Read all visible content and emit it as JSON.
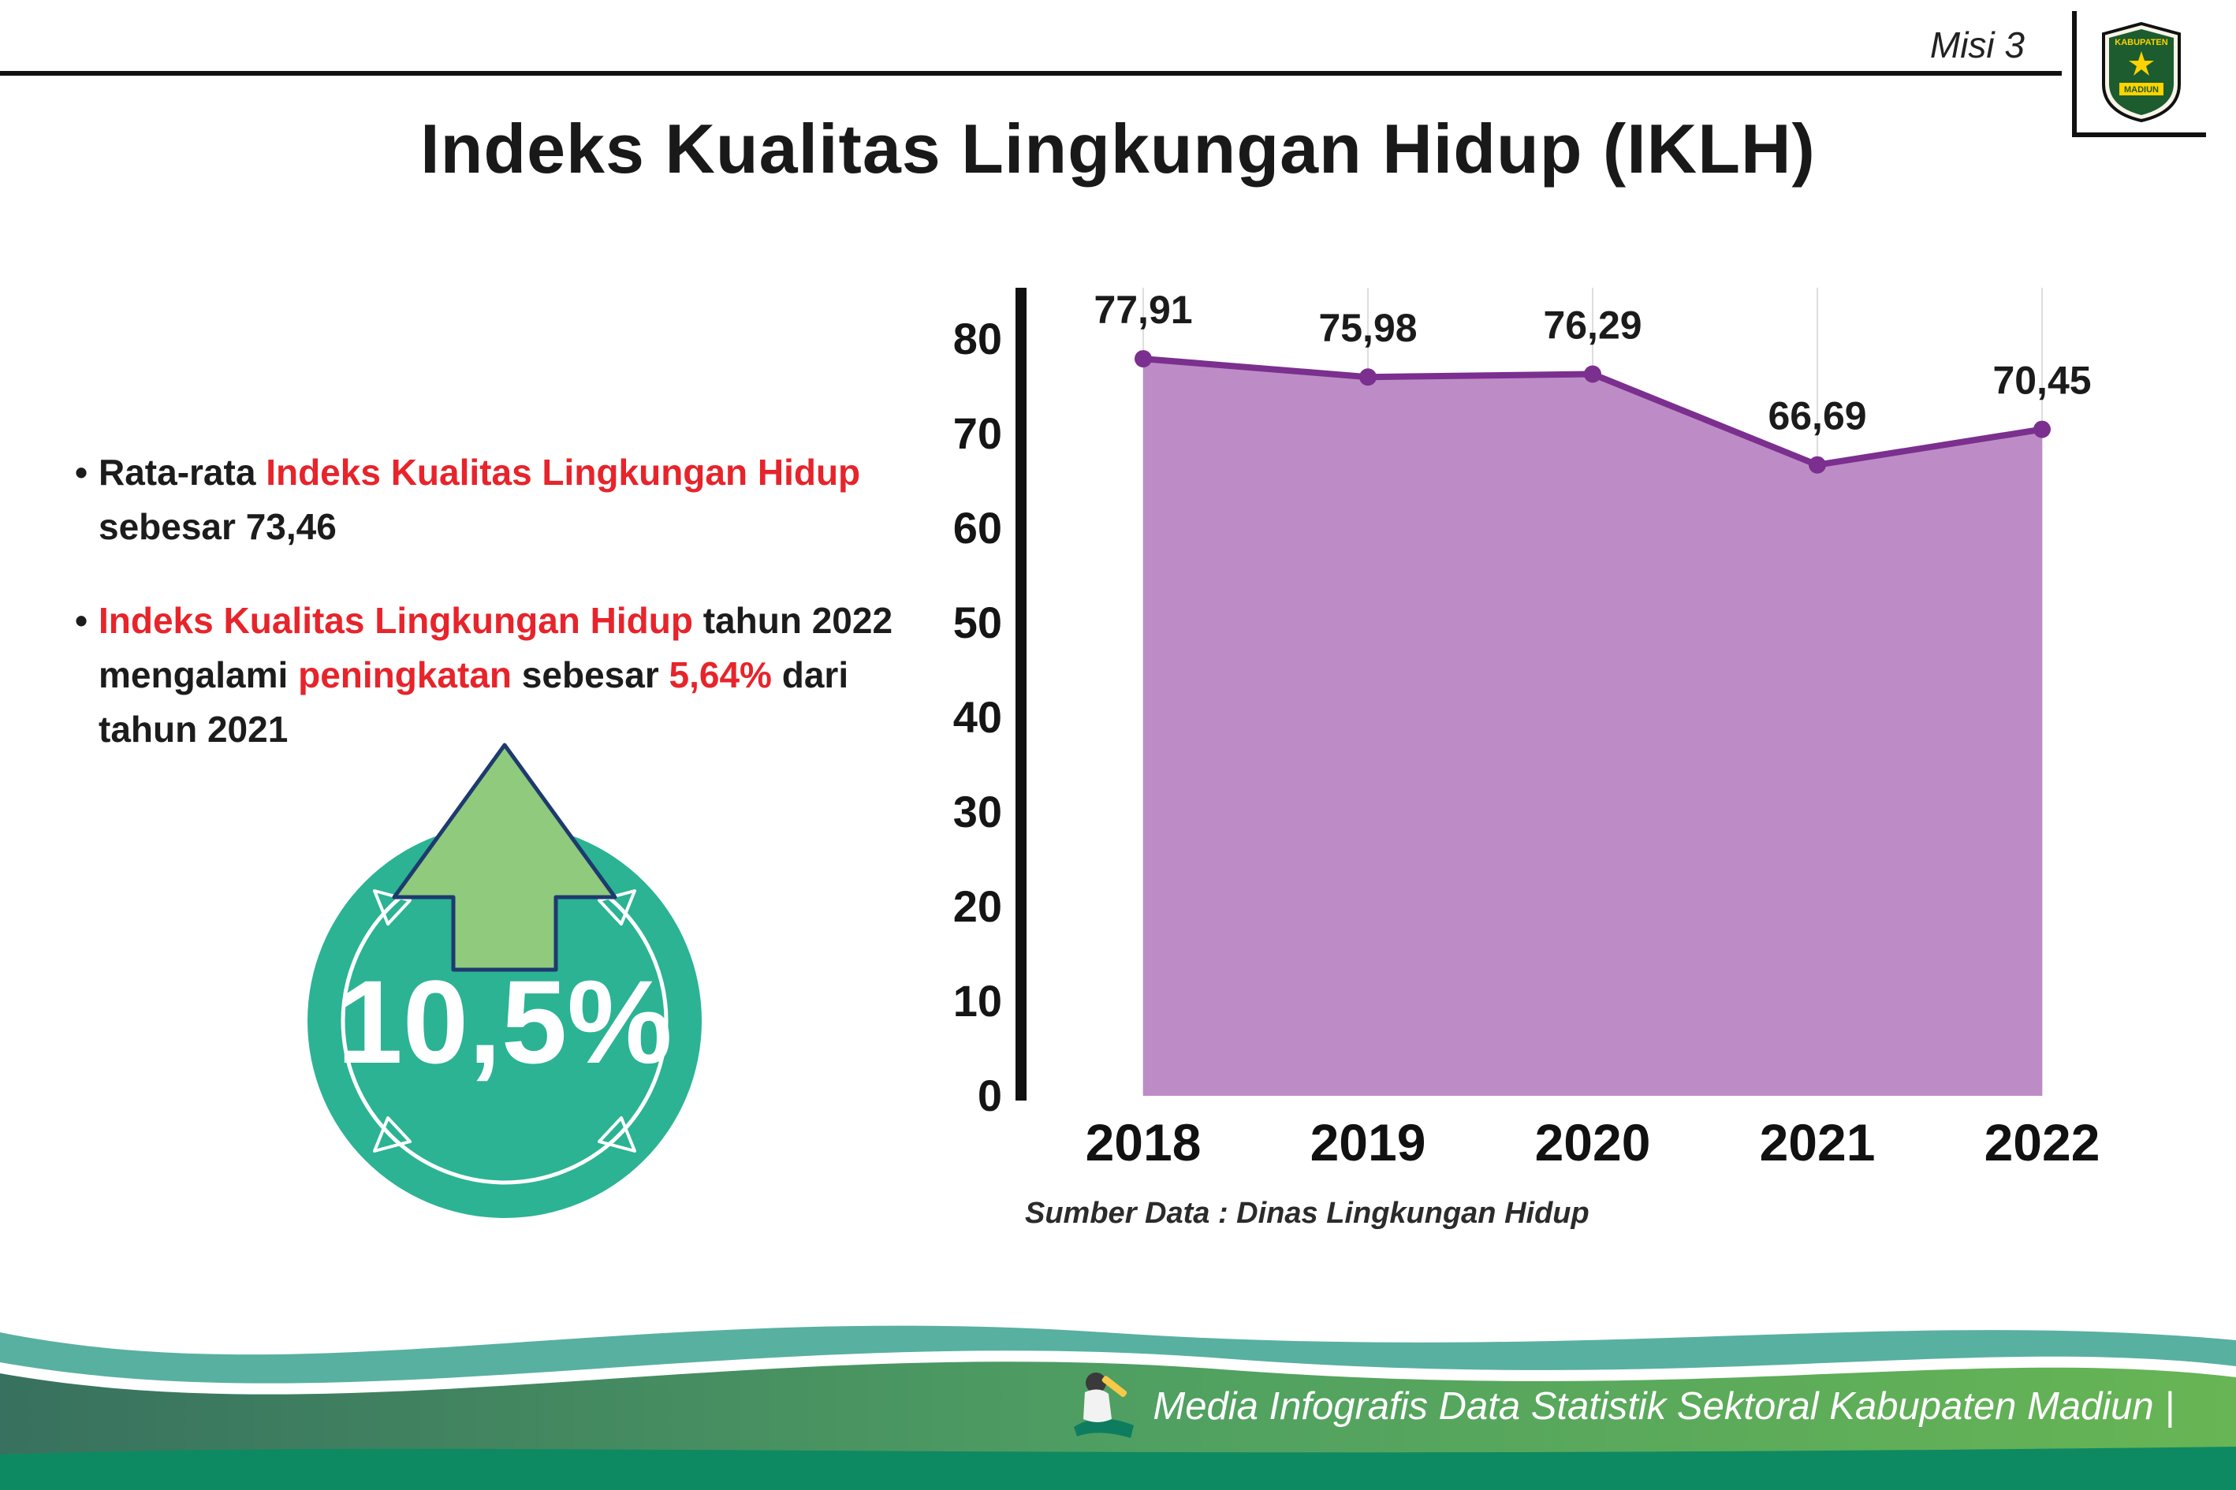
{
  "header": {
    "misi_label": "Misi 3",
    "title": "Indeks Kualitas Lingkungan Hidup (IKLH)"
  },
  "logo": {
    "top_text": "KABUPATEN",
    "bottom_text": "MADIUN"
  },
  "bullets": [
    {
      "segments": [
        {
          "text": "Rata-rata ",
          "emphasis": false
        },
        {
          "text": "Indeks Kualitas Lingkungan Hidup",
          "emphasis": true
        },
        {
          "text": " sebesar 73,46",
          "emphasis": false
        }
      ]
    },
    {
      "segments": [
        {
          "text": "Indeks Kualitas Lingkungan Hidup",
          "emphasis": true
        },
        {
          "text": " tahun 2022 mengalami ",
          "emphasis": false
        },
        {
          "text": "peningkatan",
          "emphasis": true
        },
        {
          "text": " sebesar ",
          "emphasis": false
        },
        {
          "text": "5,64%",
          "emphasis": true
        },
        {
          "text": " dari tahun 2021",
          "emphasis": false
        }
      ]
    }
  ],
  "badge": {
    "value": "10,5%"
  },
  "chart_data": {
    "type": "area",
    "title": "",
    "categories": [
      "2018",
      "2019",
      "2020",
      "2021",
      "2022"
    ],
    "values": [
      77.91,
      75.98,
      76.29,
      66.69,
      70.45
    ],
    "labels": [
      "77,91",
      "75,98",
      "76,29",
      "66,69",
      "70,45"
    ],
    "ylim": [
      0,
      80
    ],
    "yticks": [
      0,
      10,
      20,
      30,
      40,
      50,
      60,
      70,
      80
    ],
    "grid": "vertical-light",
    "legend": "none",
    "line_color": "#7b2f8e",
    "fill_color": "#bd8cc6",
    "source": "Sumber Data : Dinas Lingkungan Hidup"
  },
  "footer": {
    "credit": "Media Infografis Data Statistik Sektoral Kabupaten Madiun |"
  }
}
